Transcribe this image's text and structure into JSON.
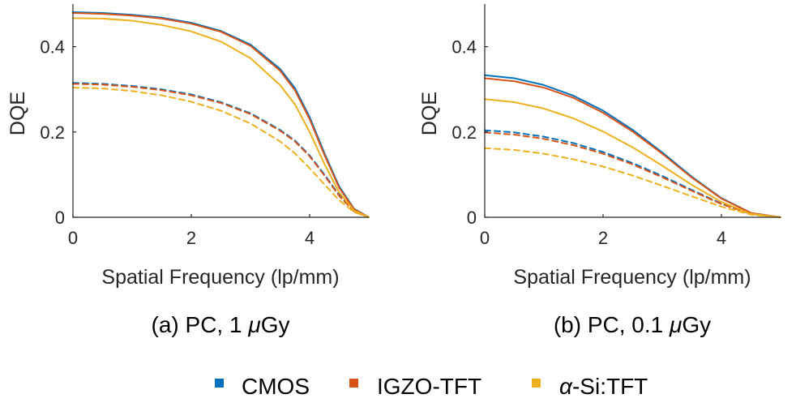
{
  "legend": [
    {
      "prefix": "",
      "greek": "",
      "label": "CMOS",
      "color": "#0072BD"
    },
    {
      "prefix": "",
      "greek": "",
      "label": "IGZO-TFT",
      "color": "#D95319"
    },
    {
      "prefix": "",
      "greek": "α",
      "label": "-Si:TFT",
      "color": "#EDB120"
    }
  ],
  "chart_data": [
    {
      "type": "line",
      "title": "",
      "caption": {
        "text": "(a) PC, 1 ",
        "greek": "μ",
        "unit": "Gy"
      },
      "xlabel": "Spatial Frequency (lp/mm)",
      "ylabel": "DQE",
      "xlim": [
        0,
        5
      ],
      "ylim": [
        0,
        0.5
      ],
      "xticks": [
        0,
        2,
        4
      ],
      "yticks": [
        0,
        0.2,
        0.4
      ],
      "x": [
        0,
        0.5,
        1,
        1.5,
        2,
        2.5,
        3,
        3.5,
        3.75,
        4,
        4.25,
        4.5,
        4.75,
        5
      ],
      "series": [
        {
          "name": "CMOS",
          "style": "solid",
          "color": "#0072BD",
          "values": [
            0.481,
            0.479,
            0.475,
            0.468,
            0.456,
            0.437,
            0.405,
            0.348,
            0.303,
            0.235,
            0.15,
            0.072,
            0.02,
            0.0
          ]
        },
        {
          "name": "IGZO-TFT",
          "style": "solid",
          "color": "#D95319",
          "values": [
            0.479,
            0.477,
            0.473,
            0.466,
            0.454,
            0.435,
            0.402,
            0.344,
            0.298,
            0.23,
            0.146,
            0.069,
            0.019,
            0.0
          ]
        },
        {
          "name": "α-Si:TFT",
          "style": "solid",
          "color": "#EDB120",
          "values": [
            0.467,
            0.466,
            0.461,
            0.451,
            0.436,
            0.412,
            0.373,
            0.31,
            0.265,
            0.2,
            0.125,
            0.058,
            0.016,
            0.0
          ]
        },
        {
          "name": "CMOS",
          "style": "dashed",
          "color": "#0072BD",
          "values": [
            0.315,
            0.313,
            0.308,
            0.3,
            0.288,
            0.27,
            0.244,
            0.205,
            0.18,
            0.145,
            0.1,
            0.052,
            0.015,
            0.0
          ]
        },
        {
          "name": "IGZO-TFT",
          "style": "dashed",
          "color": "#D95319",
          "values": [
            0.313,
            0.311,
            0.306,
            0.298,
            0.286,
            0.268,
            0.242,
            0.203,
            0.178,
            0.143,
            0.098,
            0.05,
            0.014,
            0.0
          ]
        },
        {
          "name": "α-Si:TFT",
          "style": "dashed",
          "color": "#EDB120",
          "values": [
            0.304,
            0.302,
            0.296,
            0.286,
            0.271,
            0.25,
            0.22,
            0.178,
            0.15,
            0.115,
            0.077,
            0.04,
            0.012,
            0.0
          ]
        }
      ]
    },
    {
      "type": "line",
      "title": "",
      "caption": {
        "text": "(b) PC, 0.1 ",
        "greek": "μ",
        "unit": "Gy"
      },
      "xlabel": "Spatial Frequency (lp/mm)",
      "ylabel": "DQE",
      "xlim": [
        0,
        5
      ],
      "ylim": [
        0,
        0.5
      ],
      "xticks": [
        0,
        2,
        4
      ],
      "yticks": [
        0,
        0.2,
        0.4
      ],
      "x": [
        0,
        0.5,
        1,
        1.5,
        2,
        2.5,
        3,
        3.5,
        4,
        4.5,
        5
      ],
      "series": [
        {
          "name": "CMOS",
          "style": "solid",
          "color": "#0072BD",
          "values": [
            0.333,
            0.326,
            0.31,
            0.285,
            0.25,
            0.205,
            0.152,
            0.095,
            0.045,
            0.01,
            0.0
          ]
        },
        {
          "name": "IGZO-TFT",
          "style": "solid",
          "color": "#D95319",
          "values": [
            0.326,
            0.319,
            0.304,
            0.28,
            0.245,
            0.201,
            0.149,
            0.093,
            0.044,
            0.01,
            0.0
          ]
        },
        {
          "name": "α-Si:TFT",
          "style": "solid",
          "color": "#EDB120",
          "values": [
            0.277,
            0.27,
            0.255,
            0.232,
            0.201,
            0.164,
            0.121,
            0.076,
            0.036,
            0.008,
            0.0
          ]
        },
        {
          "name": "CMOS",
          "style": "dashed",
          "color": "#0072BD",
          "values": [
            0.204,
            0.199,
            0.189,
            0.174,
            0.153,
            0.127,
            0.097,
            0.064,
            0.032,
            0.008,
            0.0
          ]
        },
        {
          "name": "IGZO-TFT",
          "style": "dashed",
          "color": "#D95319",
          "values": [
            0.199,
            0.194,
            0.184,
            0.169,
            0.149,
            0.124,
            0.094,
            0.062,
            0.031,
            0.008,
            0.0
          ]
        },
        {
          "name": "α-Si:TFT",
          "style": "dashed",
          "color": "#EDB120",
          "values": [
            0.162,
            0.158,
            0.149,
            0.136,
            0.119,
            0.098,
            0.074,
            0.049,
            0.025,
            0.006,
            0.0
          ]
        }
      ]
    }
  ]
}
